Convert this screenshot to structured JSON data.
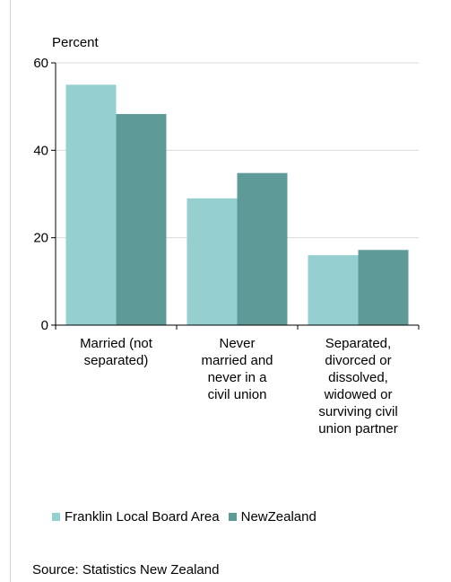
{
  "chart_data": {
    "type": "bar",
    "ylabel": "Percent",
    "ylim": [
      0,
      60
    ],
    "yticks": [
      0,
      20,
      40,
      60
    ],
    "grid": true,
    "categories": [
      [
        "Married (not",
        "separated)"
      ],
      [
        "Never",
        "married and",
        "never in a",
        "civil union"
      ],
      [
        "Separated,",
        "divorced or",
        "dissolved,",
        "widowed or",
        "surviving civil",
        "union partner"
      ]
    ],
    "series": [
      {
        "name": "Franklin Local Board Area",
        "color": "#96cfcf",
        "values": [
          55,
          29,
          16
        ]
      },
      {
        "name": "NewZealand",
        "color": "#5e9b98",
        "values": [
          48.3,
          34.8,
          17.2
        ]
      }
    ],
    "legend_position": "bottom"
  },
  "legend": {
    "items": [
      {
        "label": "Franklin Local Board Area",
        "color": "#96cfcf"
      },
      {
        "label": "NewZealand",
        "color": "#5e9b98"
      }
    ]
  },
  "source_text": "Source: Statistics New Zealand"
}
